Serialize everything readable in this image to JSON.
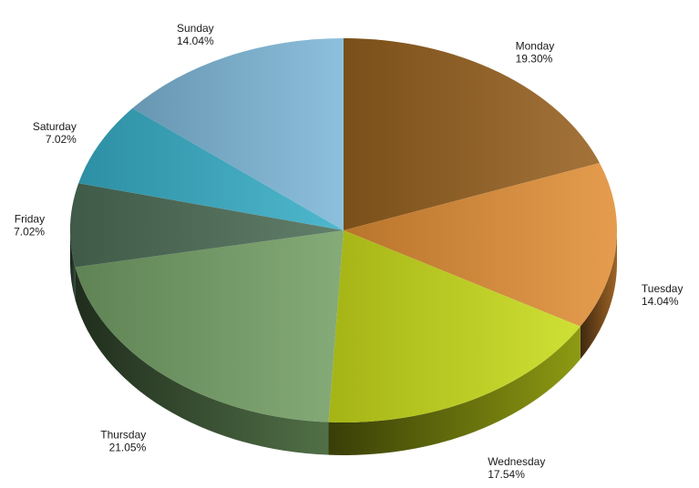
{
  "chart_data": {
    "type": "pie",
    "style": "3d",
    "categories": [
      "Monday",
      "Tuesday",
      "Wednesday",
      "Thursday",
      "Friday",
      "Saturday",
      "Sunday"
    ],
    "values": [
      19.3,
      14.04,
      17.54,
      21.05,
      7.02,
      7.02,
      14.04
    ],
    "value_labels": [
      "19.30%",
      "14.04%",
      "17.54%",
      "21.05%",
      "7.02%",
      "7.02%",
      "14.04%"
    ],
    "colors": [
      "#96601f",
      "#e28f36",
      "#c9dc1a",
      "#74a066",
      "#4d6e57",
      "#37aec7",
      "#7db7d8"
    ],
    "start_angle": "12 o'clock",
    "direction": "clockwise",
    "legend": "none"
  }
}
